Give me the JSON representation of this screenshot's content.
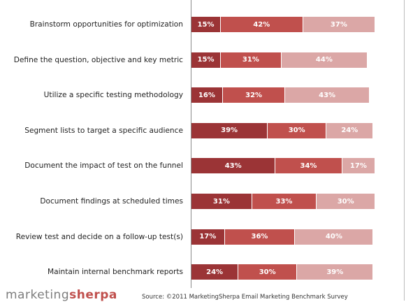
{
  "chart_data": {
    "type": "bar",
    "orientation": "horizontal",
    "stacked": true,
    "categories": [
      "Brainstorm opportunities for optimization",
      "Define the question, objective and key metric",
      "Utilize a specific testing methodology",
      "Segment lists to target a specific audience",
      "Document the impact of test on the funnel",
      "Document findings at scheduled times",
      "Review test and decide on a follow-up test(s)",
      "Maintain internal benchmark reports"
    ],
    "series": [
      {
        "values": [
          15,
          15,
          16,
          39,
          43,
          31,
          17,
          24
        ],
        "labels": [
          "15%",
          "15%",
          "16%",
          "39%",
          "43%",
          "31%",
          "17%",
          "24%"
        ],
        "color": "#9b3436"
      },
      {
        "values": [
          42,
          31,
          32,
          30,
          34,
          33,
          36,
          30
        ],
        "labels": [
          "42%",
          "31%",
          "32%",
          "30%",
          "34%",
          "33%",
          "36%",
          "30%"
        ],
        "color": "#c0504d"
      },
      {
        "values": [
          37,
          44,
          43,
          24,
          17,
          30,
          40,
          39
        ],
        "labels": [
          "37%",
          "44%",
          "43%",
          "24%",
          "17%",
          "30%",
          "40%",
          "39%"
        ],
        "color": "#dba7a6"
      }
    ],
    "xlim": [
      0,
      100
    ],
    "legend": "none",
    "grid": false
  },
  "footer": {
    "logo_part1": "marketing",
    "logo_part2": "sherpa",
    "source": "Source: ©2011 MarketingSherpa Email Marketing Benchmark Survey"
  }
}
